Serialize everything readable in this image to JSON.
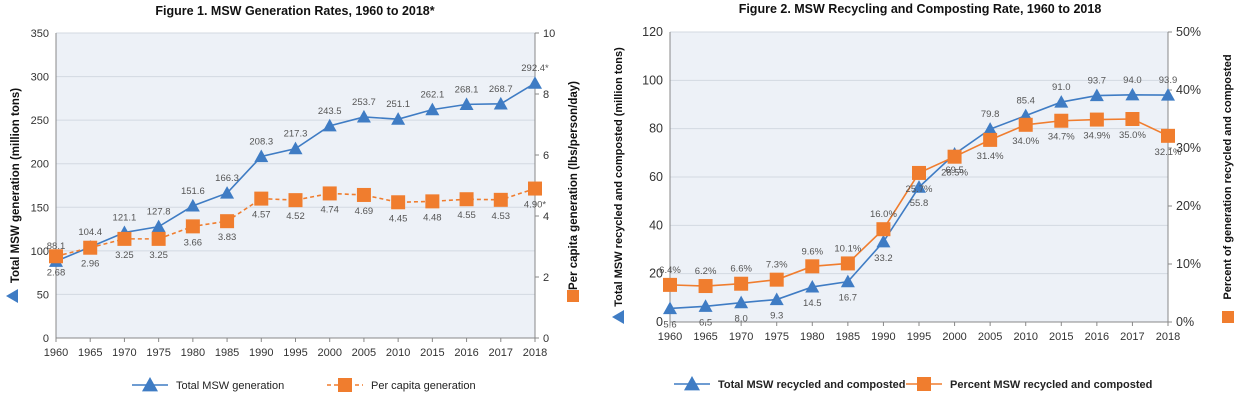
{
  "colors": {
    "series_blue": "#3F7CC4",
    "series_orange": "#F07D2E",
    "plot_bg": "#EDF1F7",
    "grid": "#D3D9E2",
    "text": "#333333",
    "label": "#555555"
  },
  "chart_data": [
    {
      "type": "line",
      "title": "Figure 1. MSW Generation Rates, 1960 to 2018*",
      "x": [
        "1960",
        "1965",
        "1970",
        "1975",
        "1980",
        "1985",
        "1990",
        "1995",
        "2000",
        "2005",
        "2010",
        "2015",
        "2016",
        "2017",
        "2018"
      ],
      "ylabel_left": "Total MSW generation (million tons)",
      "ylabel_right": "Per capita generation (lbs/person/day)",
      "ylim_left": [
        0,
        350
      ],
      "yticks_left": [
        "0",
        "50",
        "100",
        "150",
        "200",
        "250",
        "300",
        "350"
      ],
      "ylim_right": [
        0,
        10
      ],
      "yticks_right": [
        "0",
        "2",
        "4",
        "6",
        "8",
        "10"
      ],
      "grid": "horizontal",
      "legend_position": "bottom",
      "series": [
        {
          "name": "Total MSW generation",
          "axis": "left",
          "marker": "triangle",
          "line": "solid",
          "values": [
            88.1,
            104.4,
            121.1,
            127.8,
            151.6,
            166.3,
            208.3,
            217.3,
            243.5,
            253.7,
            251.1,
            262.1,
            268.1,
            268.7,
            292.4
          ],
          "labels": [
            "88.1",
            "104.4",
            "121.1",
            "127.8",
            "151.6",
            "166.3",
            "208.3",
            "217.3",
            "243.5",
            "253.7",
            "251.1",
            "262.1",
            "268.1",
            "268.7",
            "292.4*"
          ]
        },
        {
          "name": "Per capita generation",
          "axis": "right",
          "marker": "square",
          "line": "dashed",
          "values": [
            2.68,
            2.96,
            3.25,
            3.25,
            3.66,
            3.83,
            4.57,
            4.52,
            4.74,
            4.69,
            4.45,
            4.48,
            4.55,
            4.53,
            4.9
          ],
          "labels": [
            "2.68",
            "2.96",
            "3.25",
            "3.25",
            "3.66",
            "3.83",
            "4.57",
            "4.52",
            "4.74",
            "4.69",
            "4.45",
            "4.48",
            "4.55",
            "4.53",
            "4.90*"
          ]
        }
      ]
    },
    {
      "type": "line",
      "title": "Figure 2. MSW Recycling and Composting Rate, 1960 to 2018",
      "x": [
        "1960",
        "1965",
        "1970",
        "1975",
        "1980",
        "1985",
        "1990",
        "1995",
        "2000",
        "2005",
        "2010",
        "2015",
        "2016",
        "2017",
        "2018"
      ],
      "ylabel_left": "Total MSW recycled and composted (million tons)",
      "ylabel_right": "Percent of generation recycled and composted",
      "ylim_left": [
        0,
        120
      ],
      "yticks_left": [
        "0",
        "20",
        "40",
        "60",
        "80",
        "100",
        "120"
      ],
      "ylim_right": [
        0,
        50
      ],
      "yticks_right": [
        "0%",
        "10%",
        "20%",
        "30%",
        "40%",
        "50%"
      ],
      "grid": "horizontal",
      "legend_position": "bottom",
      "series": [
        {
          "name": "Total MSW recycled and composted",
          "axis": "left",
          "marker": "triangle",
          "line": "solid",
          "values": [
            5.6,
            6.5,
            8.0,
            9.3,
            14.5,
            16.7,
            33.2,
            55.8,
            69.5,
            79.8,
            85.4,
            91.0,
            93.7,
            94.0,
            93.9
          ],
          "labels": [
            "5.6",
            "6.5",
            "8.0",
            "9.3",
            "14.5",
            "16.7",
            "33.2",
            "55.8",
            "69.5",
            "79.8",
            "85.4",
            "91.0",
            "93.7",
            "94.0",
            "93.9"
          ]
        },
        {
          "name": "Percent MSW recycled and composted",
          "axis": "right",
          "marker": "square",
          "line": "solid",
          "values": [
            6.4,
            6.2,
            6.6,
            7.3,
            9.6,
            10.1,
            16.0,
            25.7,
            28.5,
            31.4,
            34.0,
            34.7,
            34.9,
            35.0,
            32.1
          ],
          "labels": [
            "6.4%",
            "6.2%",
            "6.6%",
            "7.3%",
            "9.6%",
            "10.1%",
            "16.0%",
            "25.7%",
            "28.5%",
            "31.4%",
            "34.0%",
            "34.7%",
            "34.9%",
            "35.0%",
            "32.1%"
          ]
        }
      ]
    }
  ]
}
